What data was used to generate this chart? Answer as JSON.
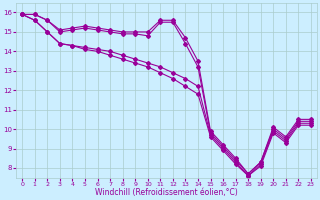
{
  "xlabel": "Windchill (Refroidissement éolien,°C)",
  "bg_color": "#cceeff",
  "line_color": "#990099",
  "grid_color": "#aacccc",
  "xlim": [
    -0.5,
    23.5
  ],
  "ylim": [
    7.5,
    16.5
  ],
  "yticks": [
    8,
    9,
    10,
    11,
    12,
    13,
    14,
    15,
    16
  ],
  "xticks": [
    0,
    1,
    2,
    3,
    4,
    5,
    6,
    7,
    8,
    9,
    10,
    11,
    12,
    13,
    14,
    15,
    16,
    17,
    18,
    19,
    20,
    21,
    22,
    23
  ],
  "series": [
    [
      15.9,
      15.9,
      15.6,
      15.1,
      15.2,
      15.3,
      15.2,
      15.1,
      15.0,
      15.0,
      15.0,
      15.6,
      15.6,
      14.7,
      13.5,
      9.9,
      9.2,
      8.5,
      7.7,
      8.3,
      10.1,
      9.6,
      10.5,
      10.5
    ],
    [
      15.9,
      15.9,
      15.6,
      15.0,
      15.1,
      15.2,
      15.1,
      15.0,
      14.9,
      14.9,
      14.8,
      15.5,
      15.5,
      14.4,
      13.2,
      9.8,
      9.1,
      8.4,
      7.7,
      8.3,
      10.0,
      9.5,
      10.4,
      10.4
    ],
    [
      15.9,
      15.6,
      15.0,
      14.4,
      14.3,
      14.2,
      14.1,
      14.0,
      13.8,
      13.6,
      13.4,
      13.2,
      12.9,
      12.6,
      12.2,
      9.7,
      9.0,
      8.3,
      7.6,
      8.2,
      9.9,
      9.4,
      10.3,
      10.3
    ],
    [
      15.9,
      15.6,
      15.0,
      14.4,
      14.3,
      14.1,
      14.0,
      13.8,
      13.6,
      13.4,
      13.2,
      12.9,
      12.6,
      12.2,
      11.8,
      9.6,
      8.9,
      8.2,
      7.6,
      8.1,
      9.8,
      9.3,
      10.2,
      10.2
    ]
  ],
  "marker": "D",
  "markersize": 2.0,
  "linewidth": 0.8
}
